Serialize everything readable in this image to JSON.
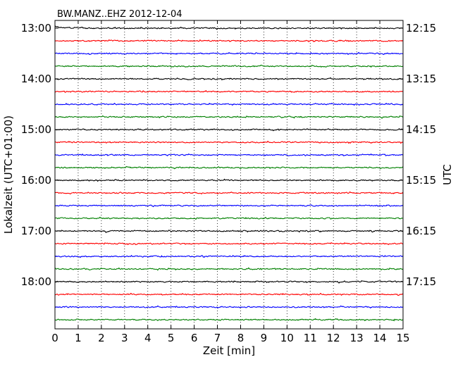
{
  "chart_data": {
    "type": "line",
    "title": "BW.MANZ..EHZ 2012-12-04",
    "xlabel": "Zeit  [min]",
    "ylabel": "Lokalzeit (UTC+01:00)",
    "ylabel_right": "UTC",
    "xlim": [
      0,
      15
    ],
    "x_ticks": [
      "0",
      "1",
      "2",
      "3",
      "4",
      "5",
      "6",
      "7",
      "8",
      "9",
      "10",
      "11",
      "12",
      "13",
      "14",
      "15"
    ],
    "vertical_grid": "dotted",
    "traces_per_hour": 4,
    "trace_count": 24,
    "trace_colors": [
      "#000000",
      "#ff0000",
      "#0000ff",
      "#008000"
    ],
    "left_tick_labels": [
      "13:00",
      "14:00",
      "15:00",
      "16:00",
      "17:00",
      "18:00"
    ],
    "right_tick_labels": [
      "12:15",
      "13:15",
      "14:15",
      "15:15",
      "16:15",
      "17:15"
    ]
  }
}
